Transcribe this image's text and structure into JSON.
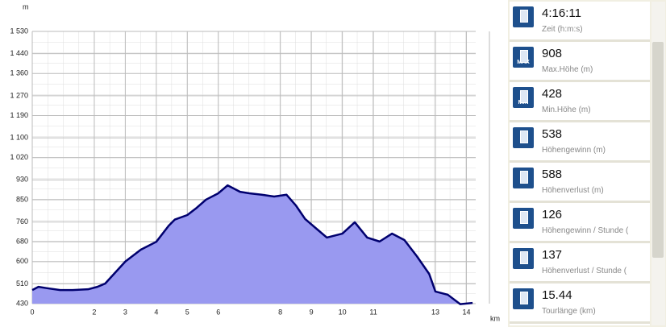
{
  "chart_data": {
    "type": "area",
    "y_unit": "m",
    "x_unit": "km",
    "x": [
      0,
      0.2,
      0.5,
      0.9,
      1.3,
      1.8,
      2.1,
      2.35,
      3,
      3.5,
      4,
      4.4,
      4.6,
      5,
      5.3,
      5.6,
      6,
      6.3,
      6.7,
      7,
      7.4,
      7.8,
      8.2,
      8.5,
      8.8,
      9.2,
      9.5,
      10,
      10.4,
      10.8,
      11.2,
      11.6,
      12,
      12.4,
      12.8,
      13,
      13.4,
      13.8,
      14.2
    ],
    "values": [
      485,
      498,
      492,
      485,
      485,
      488,
      498,
      511,
      600,
      648,
      680,
      745,
      770,
      788,
      817,
      850,
      876,
      908,
      882,
      876,
      870,
      863,
      870,
      827,
      772,
      729,
      697,
      713,
      759,
      697,
      681,
      713,
      687,
      622,
      550,
      479,
      466,
      428,
      433
    ],
    "color": "#9999f0",
    "line_color": "#00006e",
    "xlim": [
      0,
      14.3
    ],
    "ylim": [
      430,
      1530
    ],
    "xticks": [
      0,
      2,
      3,
      4,
      5,
      6,
      8,
      9,
      10,
      11,
      13,
      14
    ],
    "yticks": [
      430,
      510,
      600,
      680,
      760,
      850,
      930,
      {
        "value": 1020,
        "label": "1 020"
      },
      {
        "value": 1100,
        "label": "1 100"
      },
      {
        "value": 1190,
        "label": "1 190"
      },
      {
        "value": 1270,
        "label": "1 270"
      },
      {
        "value": 1360,
        "label": "1 360"
      },
      {
        "value": 1440,
        "label": "1 440"
      },
      {
        "value": 1530,
        "label": "1 530"
      }
    ],
    "grid": true
  },
  "stats": [
    {
      "value": "4:16:11",
      "label": "Zeit (h:m:s)"
    },
    {
      "value": "908",
      "label": "Max.Höhe (m)",
      "badge": "MAX"
    },
    {
      "value": "428",
      "label": "Min.Höhe (m)",
      "badge": "MIN"
    },
    {
      "value": "538",
      "label": "Höhengewinn (m)"
    },
    {
      "value": "588",
      "label": "Höhenverlust (m)"
    },
    {
      "value": "126",
      "label": "Höhengewinn / Stunde ("
    },
    {
      "value": "137",
      "label": "Höhenverlust / Stunde ("
    },
    {
      "value": "15.44",
      "label": "Tourlänge (km)"
    }
  ]
}
